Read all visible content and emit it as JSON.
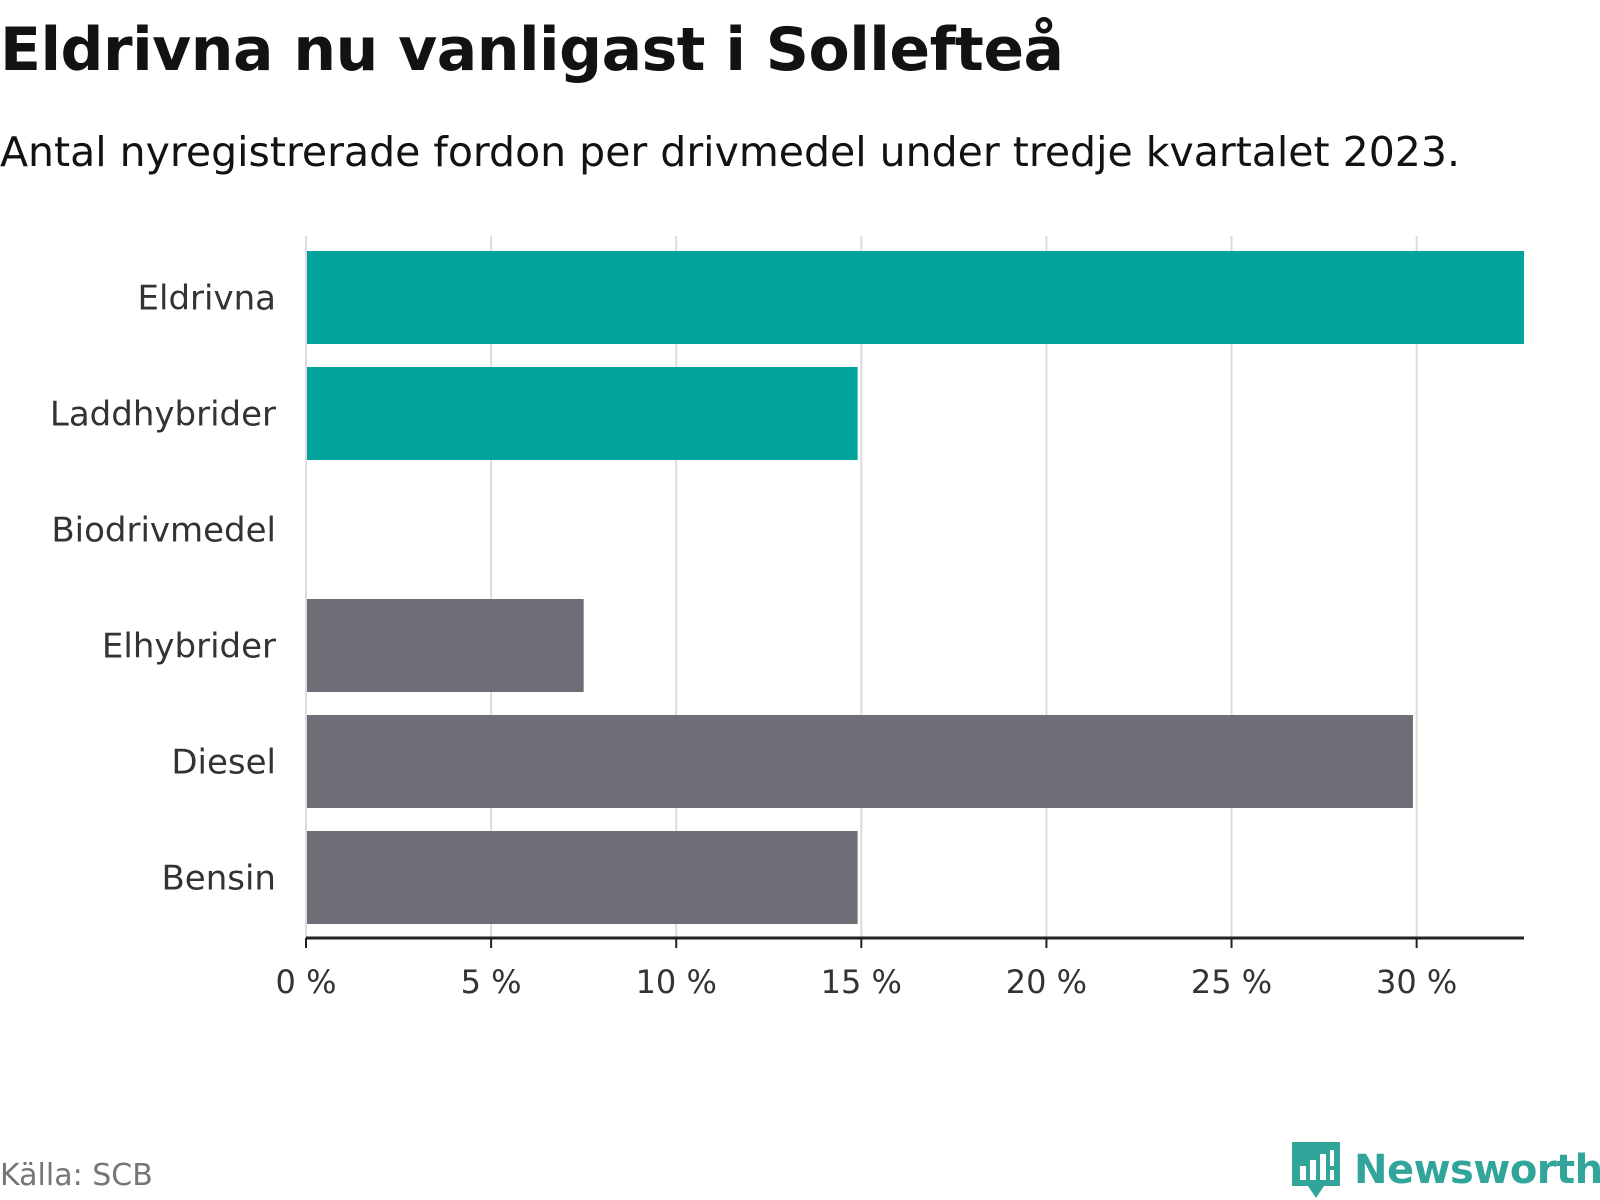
{
  "title": "Eldrivna nu vanligast i Sollefteå",
  "subtitle": "Antal nyregistrerade fordon per drivmedel under tredje kvartalet 2023.",
  "source": "Källa: SCB",
  "brand": "Newsworthy",
  "colors": {
    "highlight": "#00a49a",
    "neutral": "#6f6e76",
    "grid": "#dcdcdc",
    "axis": "#222222",
    "text": "#333333"
  },
  "chart_data": {
    "type": "bar",
    "orientation": "horizontal",
    "categories": [
      "Eldrivna",
      "Laddhybrider",
      "Biodrivmedel",
      "Elhybrider",
      "Diesel",
      "Bensin"
    ],
    "values": [
      32.9,
      14.9,
      0,
      7.5,
      29.9,
      14.9
    ],
    "groups": [
      "highlight",
      "highlight",
      "neutral",
      "neutral",
      "neutral",
      "neutral"
    ],
    "xlim": [
      0,
      32.9
    ],
    "xticks": [
      0,
      5,
      10,
      15,
      20,
      25,
      30
    ],
    "xtick_labels": [
      "0 %",
      "5 %",
      "10 %",
      "15 %",
      "20 %",
      "25 %",
      "30 %"
    ],
    "title": "Eldrivna nu vanligast i Sollefteå",
    "xlabel": "",
    "ylabel": "",
    "grid": true
  }
}
